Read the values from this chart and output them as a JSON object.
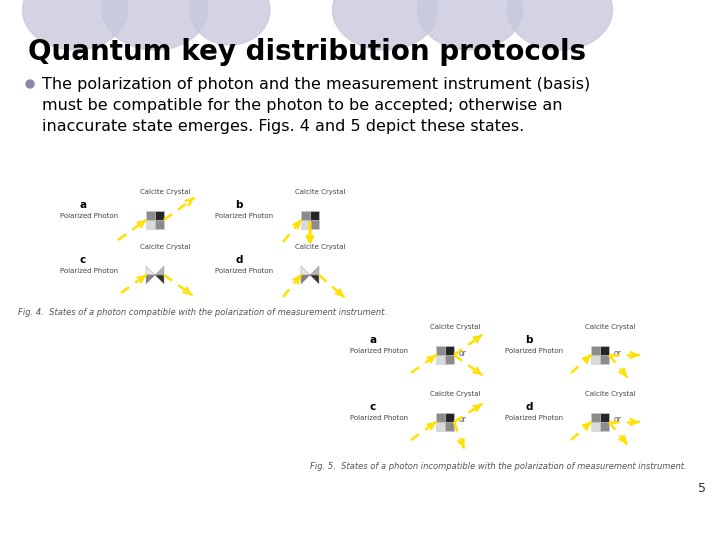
{
  "title": "Quantum key distribution protocols",
  "bullet_text": "The polarization of photon and the measurement instrument (basis)\nmust be compatible for the photon to be accepted; otherwise an\ninaccurate state emerges. Figs. 4 and 5 depict these states.",
  "fig4_caption": "Fig. 4.  States of a photon compatible with the polarization of measurement instrument.",
  "fig5_caption": "Fig. 5.  States of a photon incompatible with the polarization of measurement instrument.",
  "page_number": "5",
  "bg_color": "#ffffff",
  "title_color": "#000000",
  "bullet_color": "#000000",
  "oval_color": "#c8c8dd",
  "title_fontsize": 20,
  "bullet_fontsize": 11.5,
  "caption_fontsize": 6
}
